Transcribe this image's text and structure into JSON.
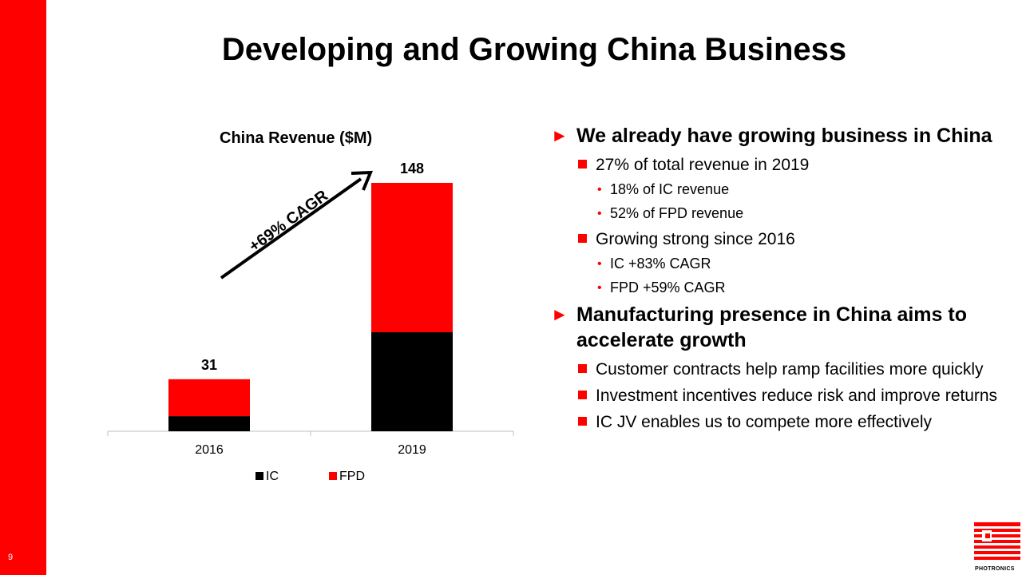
{
  "page_number": "9",
  "title": "Developing and Growing China Business",
  "chart_data": {
    "type": "bar",
    "stacked": true,
    "title": "China Revenue ($M)",
    "categories": [
      "2016",
      "2019"
    ],
    "series": [
      {
        "name": "IC",
        "color": "#000000",
        "values": [
          9,
          59
        ]
      },
      {
        "name": "FPD",
        "color": "#ff0000",
        "values": [
          22,
          89
        ]
      }
    ],
    "totals": [
      "31",
      "148"
    ],
    "ylim": [
      0,
      148
    ],
    "legend": "bottom",
    "grid": false,
    "annotation": "+69% CAGR"
  },
  "bullets": [
    {
      "text": "We already have growing business in China",
      "children": [
        {
          "text": "27% of total revenue in 2019",
          "children": [
            "18% of IC revenue",
            "52% of FPD revenue"
          ]
        },
        {
          "text": "Growing strong since 2016",
          "children": [
            "IC +83% CAGR",
            "FPD +59% CAGR"
          ]
        }
      ]
    },
    {
      "text": "Manufacturing presence in China aims to accelerate growth",
      "children": [
        {
          "text": "Customer contracts help ramp facilities more quickly",
          "children": []
        },
        {
          "text": "Investment incentives reduce risk and improve returns",
          "children": []
        },
        {
          "text": "IC JV enables us to compete more effectively",
          "children": []
        }
      ]
    }
  ],
  "logo": {
    "text": "PHOTRONICS",
    "icon": "photronics-logo-icon",
    "color": "#ff0000"
  }
}
